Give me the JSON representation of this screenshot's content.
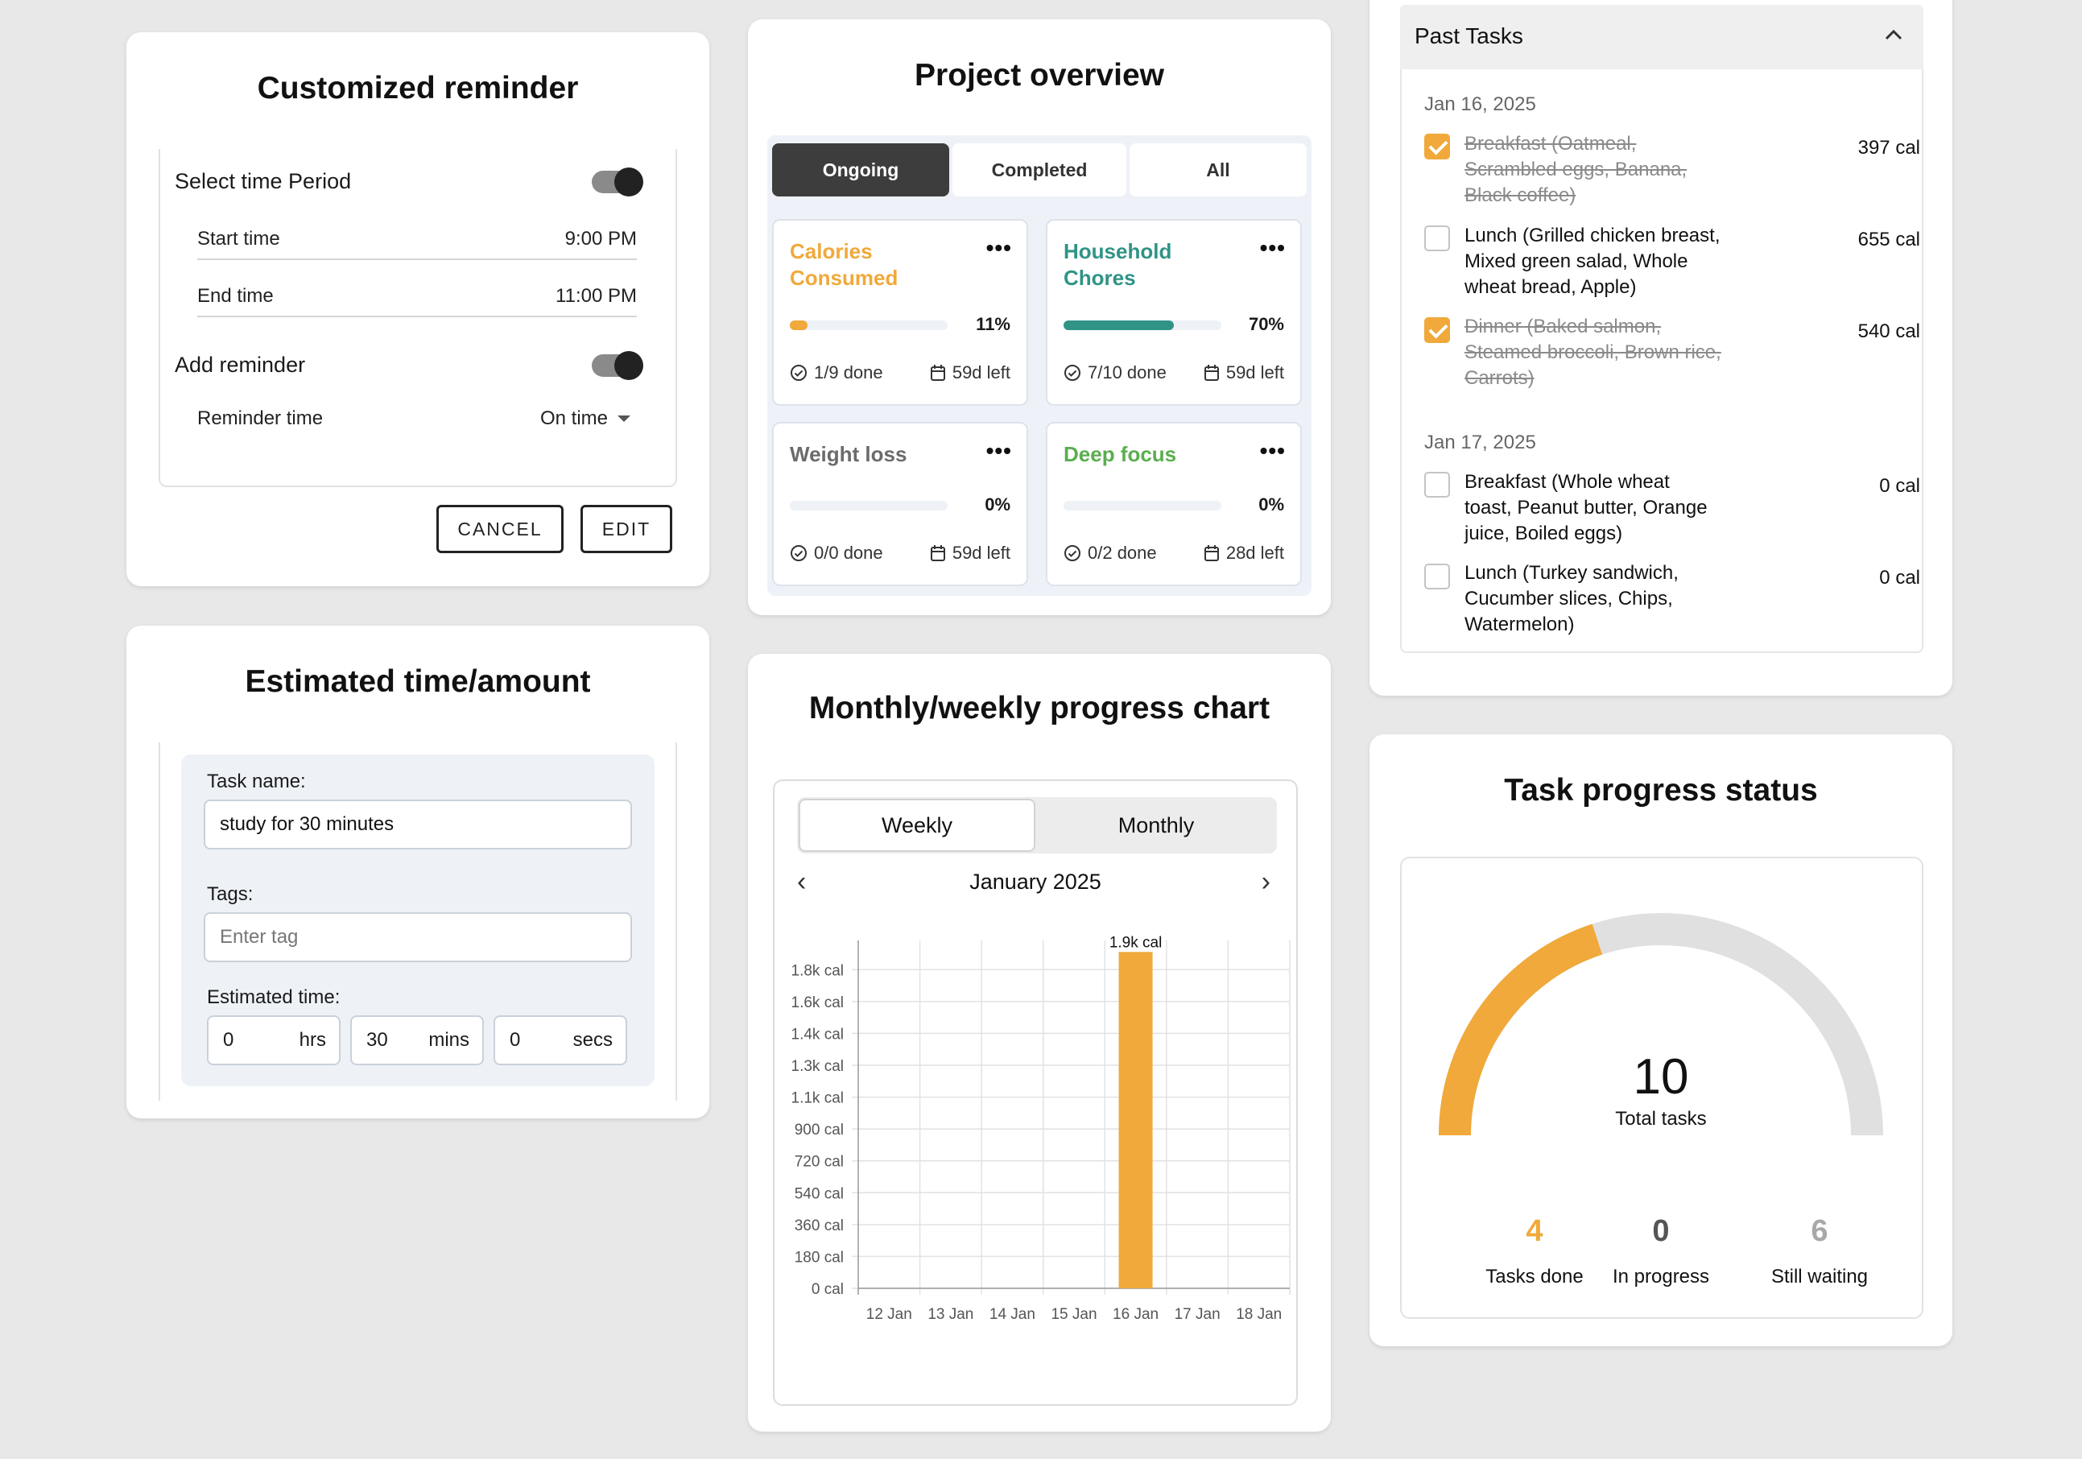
{
  "reminder": {
    "title": "Customized reminder",
    "select_period_label": "Select time Period",
    "start_time_label": "Start time",
    "start_time_value": "9:00 PM",
    "end_time_label": "End time",
    "end_time_value": "11:00 PM",
    "add_reminder_label": "Add reminder",
    "reminder_time_label": "Reminder time",
    "reminder_time_value": "On time",
    "cancel_label": "CANCEL",
    "edit_label": "EDIT"
  },
  "estimate": {
    "title": "Estimated time/amount",
    "task_name_label": "Task name:",
    "task_name_value": "study for 30 minutes",
    "tags_label": "Tags:",
    "tags_placeholder": "Enter tag",
    "estimated_label": "Estimated time:",
    "hrs_value": "0",
    "hrs_unit": "hrs",
    "mins_value": "30",
    "mins_unit": "mins",
    "secs_value": "0",
    "secs_unit": "secs"
  },
  "project": {
    "title": "Project overview",
    "tabs": [
      "Ongoing",
      "Completed",
      "All"
    ],
    "active_tab": "Ongoing",
    "items": [
      {
        "name": "Calories Consumed",
        "color": "#f0a93a",
        "progress": 11,
        "percent": "11%",
        "done": "1/9 done",
        "left": "59d left"
      },
      {
        "name": "Household Chores",
        "color": "#2f9486",
        "progress": 70,
        "percent": "70%",
        "done": "7/10 done",
        "left": "59d left"
      },
      {
        "name": "Weight loss",
        "color": "#6b6b6b",
        "progress": 0,
        "percent": "0%",
        "done": "0/0 done",
        "left": "59d left"
      },
      {
        "name": "Deep focus",
        "color": "#5aae4f",
        "progress": 0,
        "percent": "0%",
        "done": "0/2 done",
        "left": "28d left"
      }
    ],
    "more_glyph": "•••"
  },
  "chart_card": {
    "title": "Monthly/weekly progress chart",
    "toggle": [
      "Weekly",
      "Monthly"
    ],
    "active_toggle": "Weekly",
    "period": "January 2025"
  },
  "chart_data": {
    "type": "bar",
    "categories": [
      "12 Jan",
      "13 Jan",
      "14 Jan",
      "15 Jan",
      "16 Jan",
      "17 Jan",
      "18 Jan"
    ],
    "values": [
      0,
      0,
      0,
      0,
      1900,
      0,
      0
    ],
    "ytick_labels": [
      "0 cal",
      "180 cal",
      "360 cal",
      "540 cal",
      "720 cal",
      "900 cal",
      "1.1k cal",
      "1.3k cal",
      "1.4k cal",
      "1.6k cal",
      "1.8k cal"
    ],
    "data_label": "1.9k cal",
    "ylim": [
      0,
      1965
    ],
    "bar_color": "#f0a93a",
    "grid": true
  },
  "past_tasks": {
    "title": "Past Tasks",
    "groups": [
      {
        "date": "Jan 16, 2025",
        "tasks": [
          {
            "text": "Breakfast (Oatmeal, Scrambled eggs, Banana, Black coffee)",
            "cal": "397 cal",
            "done": true
          },
          {
            "text": "Lunch (Grilled chicken breast, Mixed green salad, Whole wheat bread, Apple)",
            "cal": "655 cal",
            "done": false
          },
          {
            "text": "Dinner (Baked salmon, Steamed broccoli, Brown rice, Carrots)",
            "cal": "540 cal",
            "done": true
          }
        ]
      },
      {
        "date": "Jan 17, 2025",
        "tasks": [
          {
            "text": "Breakfast (Whole wheat toast, Peanut butter, Orange juice, Boiled eggs)",
            "cal": "0 cal",
            "done": false
          },
          {
            "text": "Lunch (Turkey sandwich, Cucumber slices, Chips, Watermelon)",
            "cal": "0 cal",
            "done": false
          }
        ]
      }
    ]
  },
  "status": {
    "title": "Task progress status",
    "total": "10",
    "total_label": "Total tasks",
    "done_fraction": 0.4,
    "done_color": "#f0a93a",
    "stats": [
      {
        "value": "4",
        "label": "Tasks done",
        "color": "#f0a93a"
      },
      {
        "value": "0",
        "label": "In progress",
        "color": "#555555"
      },
      {
        "value": "6",
        "label": "Still waiting",
        "color": "#a8a8a8"
      }
    ]
  }
}
